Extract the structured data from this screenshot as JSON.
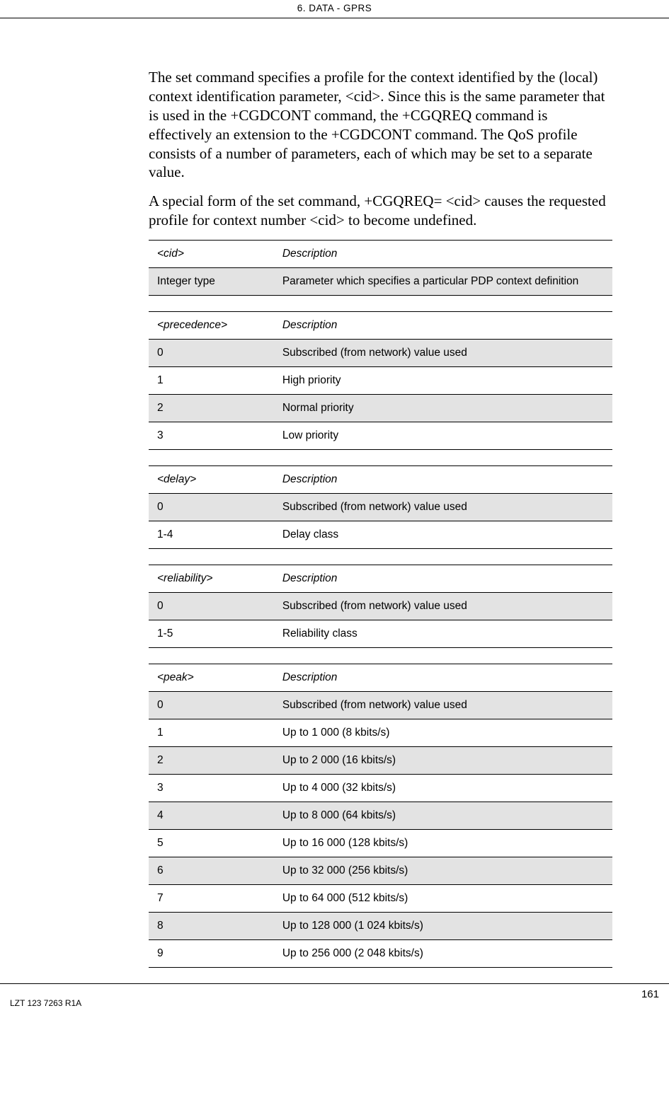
{
  "header": {
    "title": "6. DATA - GPRS"
  },
  "body": {
    "para1": "The set command specifies a profile for the context identified by the (local) context identification parameter, <cid>. Since this is the same parameter that is used in the +CGDCONT command, the +CGQREQ command is effectively an extension to the +CGDCONT command. The QoS profile consists of a number of parameters, each of which may be set to a separate value.",
    "para2": "A special form of the set command, +CGQREQ= <cid> causes the requested profile for context number <cid> to become undefined."
  },
  "tables": [
    {
      "head": [
        "<cid>",
        "Description"
      ],
      "rows": [
        {
          "shaded": true,
          "cells": [
            "Integer type",
            "Parameter which specifies a particular PDP context definition"
          ]
        }
      ]
    },
    {
      "head": [
        "<precedence>",
        "Description"
      ],
      "rows": [
        {
          "shaded": true,
          "cells": [
            "0",
            "Subscribed (from network) value used"
          ]
        },
        {
          "shaded": false,
          "cells": [
            "1",
            "High priority"
          ]
        },
        {
          "shaded": true,
          "cells": [
            "2",
            "Normal priority"
          ]
        },
        {
          "shaded": false,
          "cells": [
            "3",
            "Low priority"
          ]
        }
      ]
    },
    {
      "head": [
        "<delay>",
        "Description"
      ],
      "rows": [
        {
          "shaded": true,
          "cells": [
            "0",
            "Subscribed (from network) value used"
          ]
        },
        {
          "shaded": false,
          "cells": [
            "1-4",
            "Delay class"
          ]
        }
      ]
    },
    {
      "head": [
        "<reliability>",
        "Description"
      ],
      "rows": [
        {
          "shaded": true,
          "cells": [
            "0",
            "Subscribed (from network) value used"
          ]
        },
        {
          "shaded": false,
          "cells": [
            "1-5",
            "Reliability class"
          ]
        }
      ]
    },
    {
      "head": [
        "<peak>",
        "Description"
      ],
      "rows": [
        {
          "shaded": true,
          "cells": [
            "0",
            "Subscribed (from network) value used"
          ]
        },
        {
          "shaded": false,
          "cells": [
            "1",
            "Up to 1 000 (8 kbits/s)"
          ]
        },
        {
          "shaded": true,
          "cells": [
            "2",
            "Up to 2 000 (16 kbits/s)"
          ]
        },
        {
          "shaded": false,
          "cells": [
            "3",
            "Up to 4 000 (32 kbits/s)"
          ]
        },
        {
          "shaded": true,
          "cells": [
            "4",
            "Up to 8 000 (64 kbits/s)"
          ]
        },
        {
          "shaded": false,
          "cells": [
            "5",
            "Up to 16 000 (128 kbits/s)"
          ]
        },
        {
          "shaded": true,
          "cells": [
            "6",
            "Up to 32 000 (256 kbits/s)"
          ]
        },
        {
          "shaded": false,
          "cells": [
            "7",
            "Up to 64 000 (512 kbits/s)"
          ]
        },
        {
          "shaded": true,
          "cells": [
            "8",
            "Up to 128 000 (1 024 kbits/s)"
          ]
        },
        {
          "shaded": false,
          "cells": [
            "9",
            "Up to 256 000 (2 048 kbits/s)"
          ]
        }
      ]
    }
  ],
  "footer": {
    "doc_id": "LZT 123 7263 R1A",
    "page_num": "161"
  }
}
